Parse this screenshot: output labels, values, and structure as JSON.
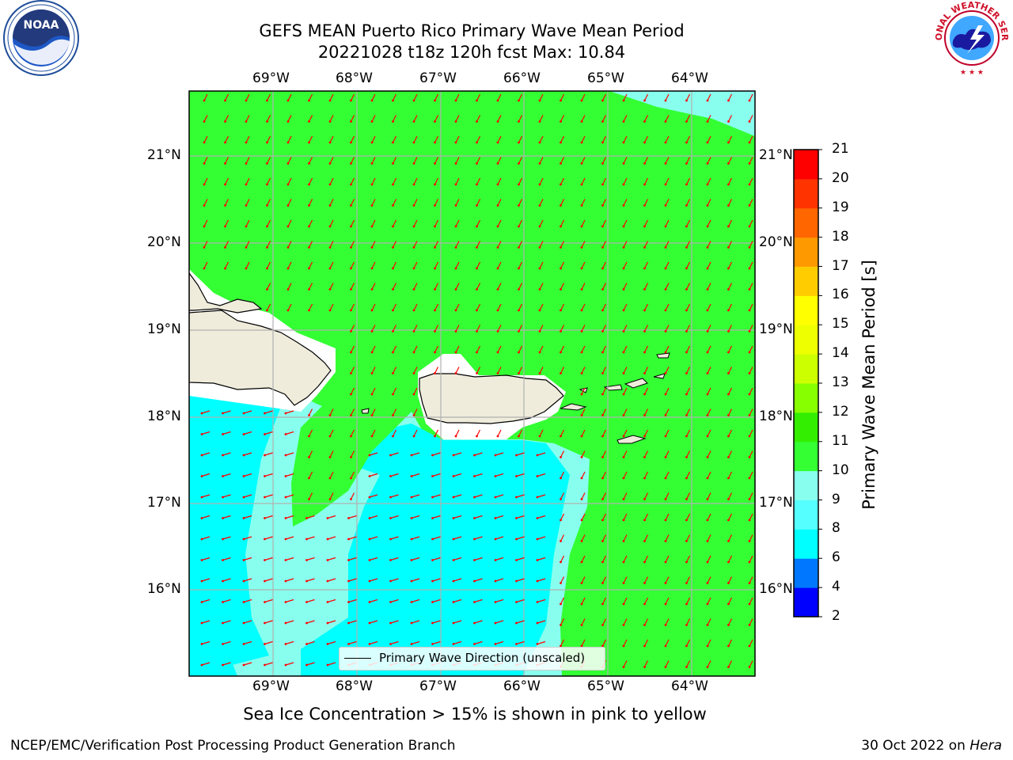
{
  "title_line1": "GEFS MEAN Puerto Rico Primary Wave Mean Period",
  "title_line2": "20221028 t18z 120h fcst   Max: 10.84",
  "lon_labels": [
    "69°W",
    "68°W",
    "67°W",
    "66°W",
    "65°W",
    "64°W"
  ],
  "lat_labels": [
    "21°N",
    "20°N",
    "19°N",
    "18°N",
    "17°N",
    "16°N"
  ],
  "colorbar": {
    "label": "Primary Wave Mean Period [s]",
    "ticks": [
      "2",
      "4",
      "6",
      "8",
      "9",
      "10",
      "11",
      "12",
      "13",
      "14",
      "15",
      "16",
      "17",
      "18",
      "19",
      "20",
      "21"
    ],
    "colors": [
      "#0000ff",
      "#0077ff",
      "#00ffff",
      "#55ffff",
      "#88ffee",
      "#33ff33",
      "#33ee00",
      "#88ff00",
      "#ccff00",
      "#eeff00",
      "#ffff00",
      "#ffcc00",
      "#ff9900",
      "#ff6600",
      "#ff3300",
      "#ff0000"
    ]
  },
  "legend_label": "Primary Wave Direction (unscaled)",
  "caption": "Sea Ice Concentration > 15% is shown in pink to yellow",
  "footer_left": "NCEP/EMC/Verification Post Processing Product Generation Branch",
  "footer_right_date": "30 Oct 2022 on ",
  "footer_right_host": "Hera",
  "logos": {
    "left": "NOAA",
    "right_text": "NATIONAL WEATHER SERVICE"
  },
  "colors": {
    "green": "#33ff33",
    "cyan": "#00ffff",
    "light_cyan": "#88ffee",
    "land": "#efecdc",
    "arrow": "#ff0000",
    "grid": "#b0b0b0"
  }
}
